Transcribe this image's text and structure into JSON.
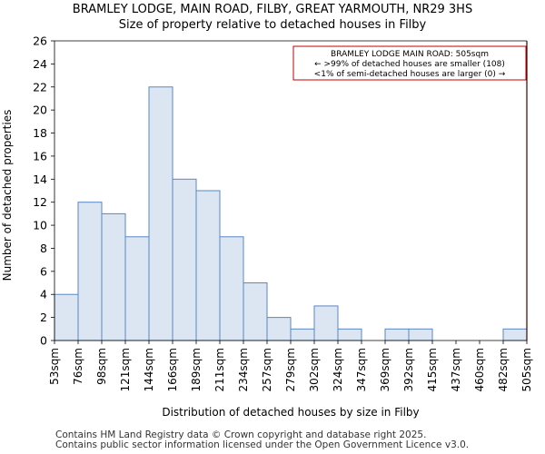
{
  "chart_data": {
    "type": "bar",
    "title": "BRAMLEY LODGE, MAIN ROAD, FILBY, GREAT YARMOUTH, NR29 3HS",
    "subtitle": "Size of property relative to detached houses in Filby",
    "xlabel": "Distribution of detached houses by size in Filby",
    "ylabel": "Number of detached properties",
    "x_tick_labels": [
      "53sqm",
      "76sqm",
      "98sqm",
      "121sqm",
      "144sqm",
      "166sqm",
      "189sqm",
      "211sqm",
      "234sqm",
      "257sqm",
      "279sqm",
      "302sqm",
      "324sqm",
      "347sqm",
      "369sqm",
      "392sqm",
      "415sqm",
      "437sqm",
      "460sqm",
      "482sqm",
      "505sqm"
    ],
    "values": [
      4,
      12,
      11,
      9,
      22,
      14,
      13,
      9,
      5,
      2,
      1,
      3,
      1,
      0,
      1,
      1,
      0,
      0,
      0,
      1
    ],
    "ylim": [
      0,
      26
    ],
    "y_ticks": [
      0,
      2,
      4,
      6,
      8,
      10,
      12,
      14,
      16,
      18,
      20,
      22,
      24,
      26
    ],
    "grid": false,
    "bar_color": "#dce6f2",
    "bar_edge_color": "#5a86c4",
    "marker": {
      "bin_index": 20,
      "color": "#c00000",
      "lines": [
        "BRAMLEY LODGE MAIN ROAD: 505sqm",
        "← >99% of detached houses are smaller (108)",
        "<1% of semi-detached houses are larger (0) →"
      ]
    }
  },
  "footer": {
    "line1": "Contains HM Land Registry data © Crown copyright and database right 2025.",
    "line2": "Contains public sector information licensed under the Open Government Licence v3.0."
  }
}
